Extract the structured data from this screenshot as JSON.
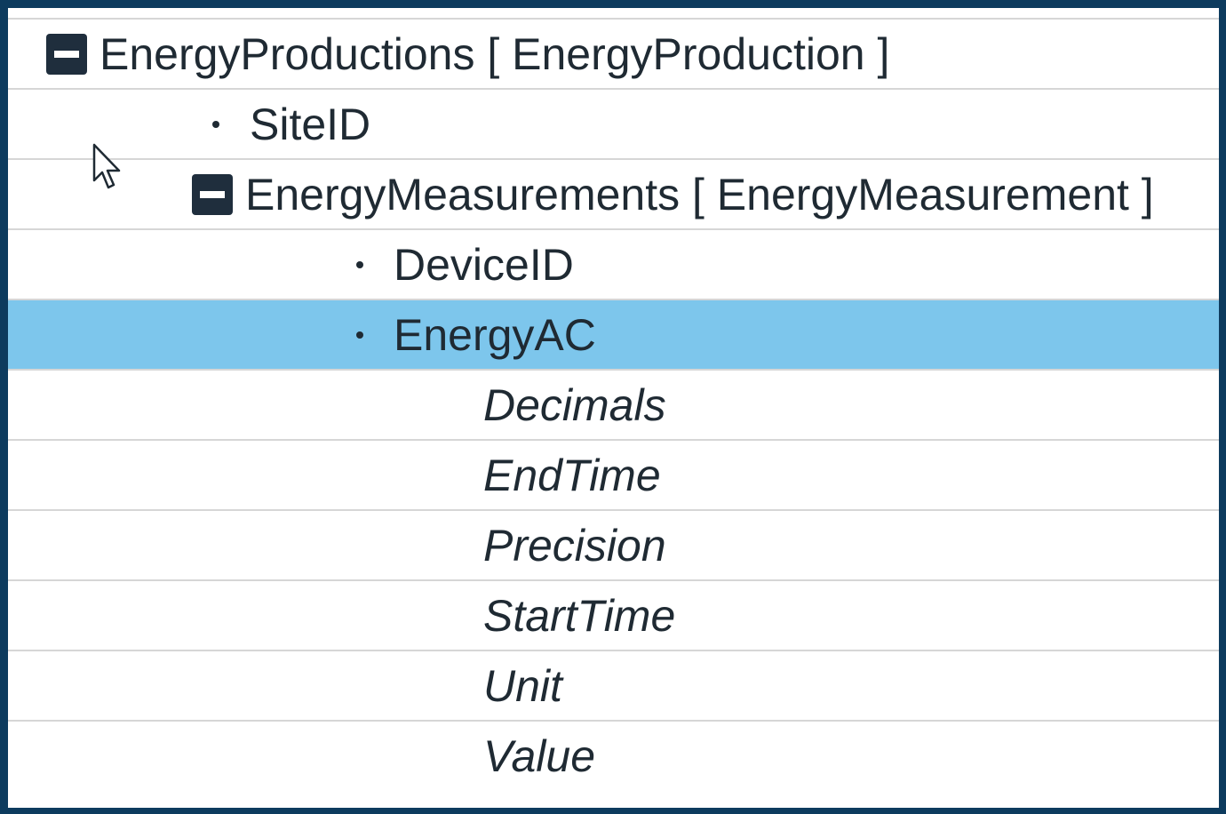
{
  "tree": {
    "rows": [
      {
        "label": "EnergyProductions [ EnergyProduction ]",
        "kind": "node-expanded",
        "depth": 0,
        "selected": false
      },
      {
        "label": "SiteID",
        "kind": "leaf",
        "depth": 1,
        "selected": false
      },
      {
        "label": "EnergyMeasurements [ EnergyMeasurement ]",
        "kind": "node-expanded",
        "depth": 1,
        "selected": false
      },
      {
        "label": "DeviceID",
        "kind": "leaf",
        "depth": 2,
        "selected": false
      },
      {
        "label": "EnergyAC",
        "kind": "leaf",
        "depth": 2,
        "selected": true
      },
      {
        "label": "Decimals",
        "kind": "attribute",
        "depth": 3,
        "selected": false
      },
      {
        "label": "EndTime",
        "kind": "attribute",
        "depth": 3,
        "selected": false
      },
      {
        "label": "Precision",
        "kind": "attribute",
        "depth": 3,
        "selected": false
      },
      {
        "label": "StartTime",
        "kind": "attribute",
        "depth": 3,
        "selected": false
      },
      {
        "label": "Unit",
        "kind": "attribute",
        "depth": 3,
        "selected": false
      },
      {
        "label": "Value",
        "kind": "attribute",
        "depth": 3,
        "selected": false
      }
    ]
  },
  "colors": {
    "frame_border": "#0d3b5e",
    "selection": "#7dc6ec",
    "row_divider": "#d6d6d6",
    "text": "#1f2a33",
    "toggle_fill": "#1f2e3d"
  },
  "icons": {
    "collapse": "minus-square-icon",
    "leaf": "bullet-icon",
    "pointer": "mouse-cursor-icon"
  }
}
